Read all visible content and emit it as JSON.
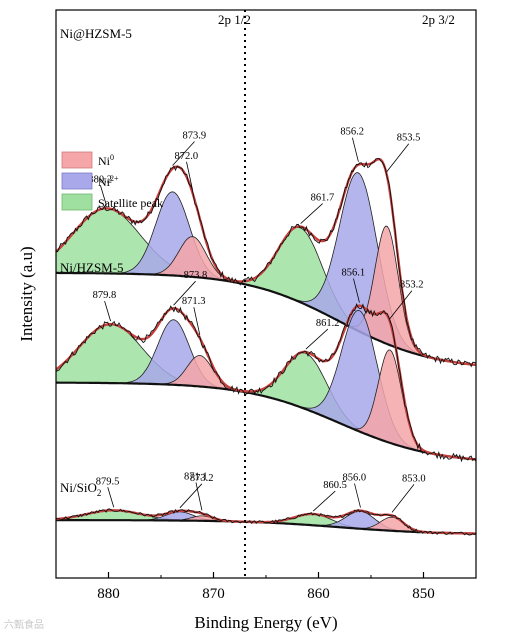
{
  "chart_data": {
    "type": "line",
    "xlabel": "Binding Energy (eV)",
    "ylabel": "Intensity (a.u)",
    "xlim": [
      885,
      845
    ],
    "x_reversed": true,
    "xticks": [
      880,
      870,
      860,
      850
    ],
    "divider_x": 867,
    "region_labels": [
      {
        "text": "2p 1/2"
      },
      {
        "text": "2p 3/2"
      }
    ],
    "legend": {
      "placement": "upper-left",
      "items": [
        {
          "name": "Ni",
          "sup": "0",
          "color": "#f4a6a8"
        },
        {
          "name": "Ni",
          "sup": "2+",
          "color": "#a8a8ea"
        },
        {
          "name": "Satellite peak",
          "color": "#9fe0a0"
        }
      ]
    },
    "colors": {
      "fit_envelope": "#c8403c",
      "raw": "#111111",
      "background": "#111111",
      "ni0": "#f4a6a8",
      "ni2": "#a8a8ea",
      "satellite": "#9fe0a0"
    },
    "panels": [
      {
        "name": "Ni@HZSM-5",
        "offset": 3.0,
        "bg": {
          "left": 1.15,
          "right": -0.42
        },
        "peaks": [
          {
            "type": "satellite",
            "center": 880.2,
            "height": 1.05,
            "width": 3.2
          },
          {
            "type": "ni2",
            "center": 873.9,
            "height": 1.35,
            "width": 1.6
          },
          {
            "type": "ni0",
            "center": 872.0,
            "height": 0.65,
            "width": 1.3
          },
          {
            "type": "satellite",
            "center": 861.7,
            "height": 1.2,
            "width": 2.1
          },
          {
            "type": "ni2",
            "center": 856.2,
            "height": 2.55,
            "width": 1.8
          },
          {
            "type": "ni0",
            "center": 853.5,
            "height": 1.9,
            "width": 1.1
          }
        ],
        "labels": [
          {
            "text": "880.2",
            "x": 880.2
          },
          {
            "text": "873.9",
            "x": 873.9
          },
          {
            "text": "872.0",
            "x": 872.0
          },
          {
            "text": "861.7",
            "x": 861.7
          },
          {
            "text": "856.2",
            "x": 856.2
          },
          {
            "text": "853.5",
            "x": 853.5
          }
        ]
      },
      {
        "name": "Ni/HZSM-5",
        "offset": 1.45,
        "bg": {
          "left": 0.93,
          "right": -0.38
        },
        "peaks": [
          {
            "type": "satellite",
            "center": 879.8,
            "height": 0.95,
            "width": 3.0
          },
          {
            "type": "ni2",
            "center": 873.8,
            "height": 1.05,
            "width": 1.5
          },
          {
            "type": "ni0",
            "center": 871.3,
            "height": 0.5,
            "width": 1.2
          },
          {
            "type": "satellite",
            "center": 861.2,
            "height": 0.9,
            "width": 2.0
          },
          {
            "type": "ni2",
            "center": 856.1,
            "height": 1.95,
            "width": 1.7
          },
          {
            "type": "ni0",
            "center": 853.2,
            "height": 1.5,
            "width": 1.1
          }
        ],
        "labels": [
          {
            "text": "879.8",
            "x": 879.8
          },
          {
            "text": "873.8",
            "x": 873.8
          },
          {
            "text": "871.3",
            "x": 871.3
          },
          {
            "text": "861.2",
            "x": 861.2
          },
          {
            "text": "856.1",
            "x": 856.1
          },
          {
            "text": "853.2",
            "x": 853.2
          }
        ]
      },
      {
        "name": "Ni/SiO",
        "name_sub": "2",
        "offset": 0.0,
        "bg": {
          "left": 0.16,
          "right": -0.07
        },
        "peaks": [
          {
            "type": "satellite",
            "center": 879.5,
            "height": 0.16,
            "width": 2.6
          },
          {
            "type": "ni2",
            "center": 873.2,
            "height": 0.14,
            "width": 1.3
          },
          {
            "type": "ni0",
            "center": 871.1,
            "height": 0.08,
            "width": 1.0
          },
          {
            "type": "satellite",
            "center": 860.5,
            "height": 0.18,
            "width": 1.8
          },
          {
            "type": "ni2",
            "center": 856.0,
            "height": 0.28,
            "width": 1.4
          },
          {
            "type": "ni0",
            "center": 853.0,
            "height": 0.22,
            "width": 1.1
          }
        ],
        "labels": [
          {
            "text": "879.5",
            "x": 879.5
          },
          {
            "text": "873.2",
            "x": 873.2
          },
          {
            "text": "871.1",
            "x": 871.1
          },
          {
            "text": "860.5",
            "x": 860.5
          },
          {
            "text": "856.0",
            "x": 856.0
          },
          {
            "text": "853.0",
            "x": 853.0
          }
        ]
      }
    ]
  },
  "watermark": "六甄食品"
}
